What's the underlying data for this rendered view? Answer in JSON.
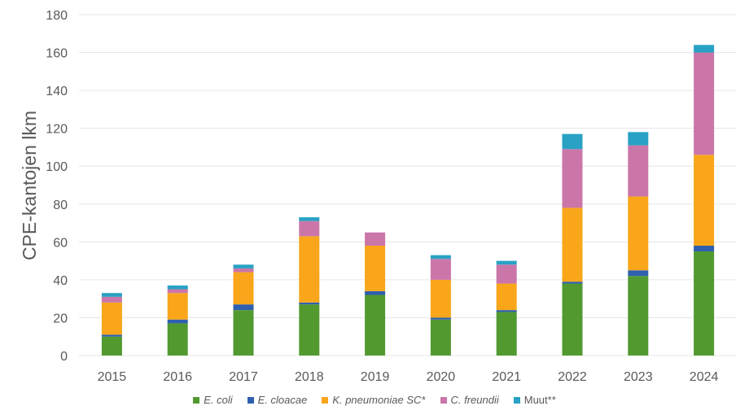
{
  "chart_data": {
    "type": "bar",
    "stacked": true,
    "title": "",
    "xlabel": "",
    "ylabel": "CPE-kantojen lkm",
    "ylim": [
      0,
      180
    ],
    "yticks": [
      0,
      20,
      40,
      60,
      80,
      100,
      120,
      140,
      160,
      180
    ],
    "grid": true,
    "legend_placement": "bottom",
    "categories": [
      "2015",
      "2016",
      "2017",
      "2018",
      "2019",
      "2020",
      "2021",
      "2022",
      "2023",
      "2024"
    ],
    "series": [
      {
        "name": "E. coli",
        "italic": true,
        "color": "#529A30",
        "values": [
          10,
          17,
          24,
          27,
          32,
          19,
          23,
          38,
          42,
          55
        ]
      },
      {
        "name": "E. cloacae",
        "italic": true,
        "color": "#2F5FAE",
        "values": [
          1,
          2,
          3,
          1,
          2,
          1,
          1,
          1,
          3,
          3
        ]
      },
      {
        "name": "K. pneumoniae SC*",
        "italic": true,
        "color": "#F9A61A",
        "values": [
          17,
          14,
          17,
          35,
          24,
          20,
          14,
          39,
          39,
          48
        ]
      },
      {
        "name": "C. freundii",
        "italic": true,
        "color": "#CB76A9",
        "values": [
          3,
          2,
          2,
          8,
          7,
          11,
          10,
          31,
          27,
          54
        ]
      },
      {
        "name": "Muut**",
        "italic": false,
        "color": "#29A1C4",
        "values": [
          2,
          2,
          2,
          2,
          0,
          2,
          2,
          8,
          7,
          4
        ]
      }
    ]
  }
}
